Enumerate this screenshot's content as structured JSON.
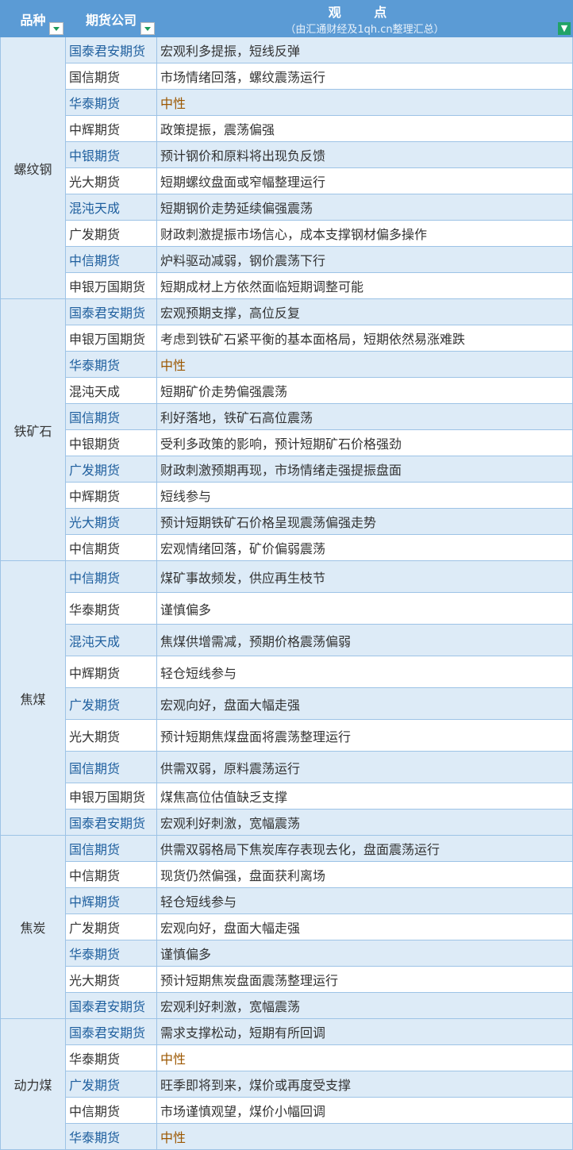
{
  "header": {
    "variety": "品种",
    "company": "期货公司",
    "view_title": "观 点",
    "view_sub": "（由汇通财经及1qh.cn整理汇总）"
  },
  "colors": {
    "header": "#5b9bd5",
    "shade": "#ddebf7",
    "border": "#9dc3e6",
    "company_highlight": "#1f5f9e",
    "neutral": "#9c5700"
  },
  "groups": [
    {
      "name": "螺纹钢",
      "row_height": 33,
      "rows": [
        [
          "国泰君安期货",
          "宏观利多提振，短线反弹"
        ],
        [
          "国信期货",
          "市场情绪回落，螺纹震荡运行"
        ],
        [
          "华泰期货",
          "中性"
        ],
        [
          "中辉期货",
          "政策提振，震荡偏强"
        ],
        [
          "中银期货",
          "预计钢价和原料将出现负反馈"
        ],
        [
          "光大期货",
          "短期螺纹盘面或窄幅整理运行"
        ],
        [
          "混沌天成",
          "短期钢价走势延续偏强震荡"
        ],
        [
          "广发期货",
          "财政刺激提振市场信心，成本支撑钢材偏多操作"
        ],
        [
          "中信期货",
          "炉料驱动减弱，钢价震荡下行"
        ],
        [
          "申银万国期货",
          "短期成材上方依然面临短期调整可能"
        ]
      ]
    },
    {
      "name": "铁矿石",
      "row_height": 33,
      "rows": [
        [
          "国泰君安期货",
          "宏观预期支撑，高位反复"
        ],
        [
          "申银万国期货",
          "考虑到铁矿石紧平衡的基本面格局，短期依然易涨难跌"
        ],
        [
          "华泰期货",
          "中性"
        ],
        [
          "混沌天成",
          "短期矿价走势偏强震荡"
        ],
        [
          "国信期货",
          "利好落地，铁矿石高位震荡"
        ],
        [
          "中银期货",
          "受利多政策的影响，预计短期矿石价格强劲"
        ],
        [
          "广发期货",
          "财政刺激预期再现，市场情绪走强提振盘面"
        ],
        [
          "中辉期货",
          "短线参与"
        ],
        [
          "光大期货",
          "预计短期铁矿石价格呈现震荡偏强走势"
        ],
        [
          "中信期货",
          "宏观情绪回落，矿价偏弱震荡"
        ]
      ]
    },
    {
      "name": "焦煤",
      "row_height": 40,
      "rows": [
        [
          "中信期货",
          "煤矿事故频发，供应再生枝节"
        ],
        [
          "华泰期货",
          "谨慎偏多"
        ],
        [
          "混沌天成",
          "焦煤供增需减，预期价格震荡偏弱"
        ],
        [
          "中辉期货",
          "轻仓短线参与"
        ],
        [
          "广发期货",
          "宏观向好，盘面大幅走强"
        ],
        [
          "光大期货",
          "预计短期焦煤盘面将震荡整理运行"
        ],
        [
          "国信期货",
          "供需双弱，原料震荡运行"
        ],
        [
          "申银万国期货",
          "煤焦高位估值缺乏支撑"
        ],
        [
          "国泰君安期货",
          "宏观利好刺激，宽幅震荡"
        ]
      ]
    },
    {
      "name": "焦炭",
      "row_height": 33,
      "rows": [
        [
          "国信期货",
          "供需双弱格局下焦炭库存表现去化，盘面震荡运行"
        ],
        [
          "中信期货",
          "现货仍然偏强，盘面获利离场"
        ],
        [
          "中辉期货",
          "轻仓短线参与"
        ],
        [
          "广发期货",
          "宏观向好，盘面大幅走强"
        ],
        [
          "华泰期货",
          "谨慎偏多"
        ],
        [
          "光大期货",
          "预计短期焦炭盘面震荡整理运行"
        ],
        [
          "国泰君安期货",
          "宏观利好刺激，宽幅震荡"
        ]
      ]
    },
    {
      "name": "动力煤",
      "row_height": 33,
      "rows": [
        [
          "国泰君安期货",
          "需求支撑松动，短期有所回调"
        ],
        [
          "华泰期货",
          "中性"
        ],
        [
          "广发期货",
          "旺季即将到来，煤价或再度受支撑"
        ],
        [
          "中信期货",
          "市场谨慎观望，煤价小幅回调"
        ],
        [
          "华泰期货",
          "中性"
        ]
      ]
    }
  ]
}
